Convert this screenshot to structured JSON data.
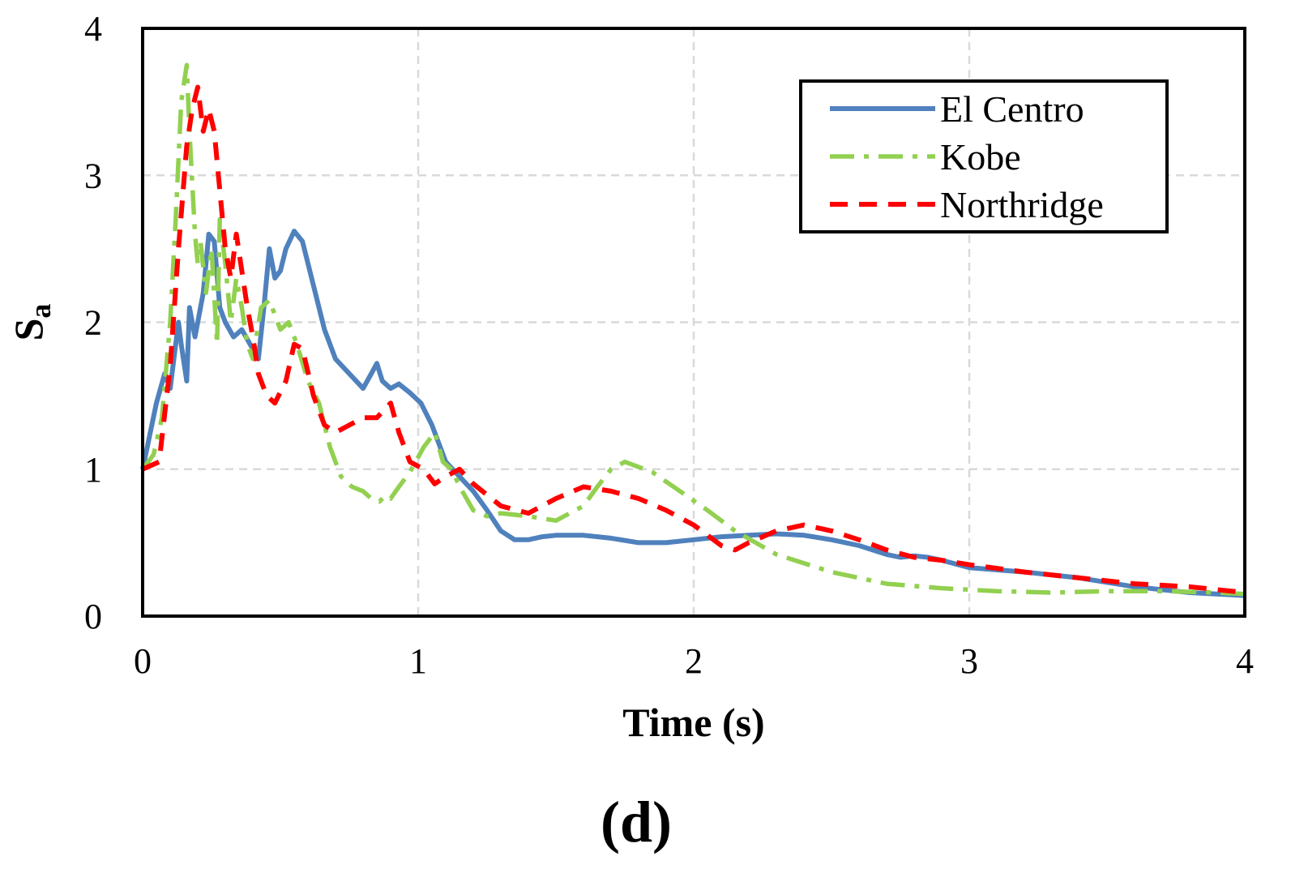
{
  "chart_data": {
    "type": "line",
    "xlabel": "Time (s)",
    "ylabel_main": "S",
    "ylabel_sub": "a",
    "xlim": [
      0,
      4
    ],
    "ylim": [
      0,
      4
    ],
    "xticks": [
      0,
      1,
      2,
      3,
      4
    ],
    "yticks": [
      0,
      1,
      2,
      3,
      4
    ],
    "grid": true,
    "legend_position": "top-right",
    "panel_label": "(d)",
    "series": [
      {
        "name": "El Centro",
        "color": "#4f81bd",
        "style": "solid",
        "x": [
          0,
          0.05,
          0.08,
          0.1,
          0.13,
          0.14,
          0.16,
          0.17,
          0.19,
          0.2,
          0.22,
          0.24,
          0.26,
          0.28,
          0.3,
          0.33,
          0.36,
          0.39,
          0.42,
          0.44,
          0.46,
          0.48,
          0.5,
          0.52,
          0.55,
          0.58,
          0.62,
          0.66,
          0.7,
          0.75,
          0.8,
          0.83,
          0.85,
          0.87,
          0.9,
          0.93,
          0.97,
          1.01,
          1.05,
          1.1,
          1.15,
          1.2,
          1.25,
          1.3,
          1.35,
          1.4,
          1.45,
          1.5,
          1.6,
          1.7,
          1.8,
          1.9,
          2.0,
          2.1,
          2.2,
          2.3,
          2.4,
          2.5,
          2.6,
          2.7,
          2.75,
          2.8,
          2.85,
          2.9,
          3.0,
          3.2,
          3.4,
          3.6,
          3.8,
          4.0
        ],
        "y": [
          1.0,
          1.45,
          1.65,
          1.55,
          2.0,
          1.85,
          1.6,
          2.1,
          1.9,
          2.0,
          2.2,
          2.6,
          2.55,
          2.1,
          2.0,
          1.9,
          1.95,
          1.85,
          1.75,
          2.1,
          2.5,
          2.3,
          2.35,
          2.5,
          2.62,
          2.55,
          2.25,
          1.95,
          1.75,
          1.65,
          1.55,
          1.65,
          1.72,
          1.6,
          1.55,
          1.58,
          1.52,
          1.45,
          1.3,
          1.05,
          0.95,
          0.85,
          0.72,
          0.58,
          0.52,
          0.52,
          0.54,
          0.55,
          0.55,
          0.53,
          0.5,
          0.5,
          0.52,
          0.54,
          0.55,
          0.56,
          0.55,
          0.52,
          0.48,
          0.42,
          0.4,
          0.41,
          0.4,
          0.38,
          0.33,
          0.3,
          0.26,
          0.2,
          0.16,
          0.14
        ]
      },
      {
        "name": "Kobe",
        "color": "#92d050",
        "style": "dashdot",
        "x": [
          0,
          0.04,
          0.07,
          0.1,
          0.12,
          0.14,
          0.16,
          0.17,
          0.19,
          0.2,
          0.21,
          0.23,
          0.25,
          0.27,
          0.28,
          0.3,
          0.32,
          0.34,
          0.36,
          0.38,
          0.4,
          0.43,
          0.46,
          0.5,
          0.53,
          0.56,
          0.6,
          0.64,
          0.68,
          0.72,
          0.76,
          0.8,
          0.83,
          0.86,
          0.88,
          0.9,
          0.93,
          0.97,
          1.02,
          1.06,
          1.09,
          1.12,
          1.16,
          1.2,
          1.25,
          1.3,
          1.4,
          1.5,
          1.6,
          1.65,
          1.7,
          1.75,
          1.85,
          1.95,
          2.05,
          2.15,
          2.3,
          2.5,
          2.7,
          2.9,
          3.1,
          3.3,
          3.5,
          3.7,
          3.9,
          4.0
        ],
        "y": [
          1.0,
          1.1,
          1.35,
          2.0,
          2.7,
          3.5,
          3.75,
          3.3,
          2.6,
          2.4,
          2.55,
          2.2,
          2.5,
          1.85,
          2.7,
          2.4,
          2.0,
          2.3,
          2.1,
          1.85,
          1.75,
          2.1,
          2.15,
          1.95,
          2.0,
          1.85,
          1.6,
          1.45,
          1.15,
          0.95,
          0.88,
          0.85,
          0.8,
          0.78,
          0.82,
          0.8,
          0.88,
          0.98,
          1.15,
          1.25,
          1.05,
          1.0,
          0.85,
          0.72,
          0.68,
          0.7,
          0.68,
          0.65,
          0.75,
          0.88,
          1.0,
          1.05,
          0.98,
          0.85,
          0.72,
          0.58,
          0.42,
          0.3,
          0.22,
          0.19,
          0.17,
          0.16,
          0.17,
          0.17,
          0.16,
          0.15
        ]
      },
      {
        "name": "Northridge",
        "color": "#ff0000",
        "style": "dashed",
        "x": [
          0,
          0.06,
          0.1,
          0.13,
          0.16,
          0.18,
          0.2,
          0.22,
          0.24,
          0.26,
          0.28,
          0.3,
          0.32,
          0.34,
          0.36,
          0.38,
          0.4,
          0.42,
          0.45,
          0.48,
          0.52,
          0.55,
          0.58,
          0.62,
          0.66,
          0.7,
          0.75,
          0.8,
          0.85,
          0.9,
          0.93,
          0.97,
          1.02,
          1.06,
          1.1,
          1.15,
          1.2,
          1.3,
          1.4,
          1.5,
          1.6,
          1.7,
          1.8,
          1.9,
          2.0,
          2.05,
          2.1,
          2.15,
          2.2,
          2.3,
          2.4,
          2.5,
          2.6,
          2.7,
          2.8,
          2.9,
          3.0,
          3.2,
          3.4,
          3.6,
          3.8,
          4.0
        ],
        "y": [
          1.0,
          1.05,
          1.7,
          2.5,
          3.2,
          3.45,
          3.6,
          3.3,
          3.45,
          3.3,
          2.9,
          2.5,
          2.3,
          2.6,
          2.35,
          2.1,
          1.9,
          1.65,
          1.5,
          1.45,
          1.6,
          1.85,
          1.82,
          1.5,
          1.3,
          1.25,
          1.3,
          1.35,
          1.35,
          1.45,
          1.25,
          1.05,
          1.0,
          0.9,
          0.95,
          1.0,
          0.9,
          0.75,
          0.7,
          0.8,
          0.88,
          0.85,
          0.8,
          0.72,
          0.62,
          0.55,
          0.48,
          0.45,
          0.5,
          0.58,
          0.62,
          0.58,
          0.52,
          0.45,
          0.4,
          0.38,
          0.35,
          0.3,
          0.26,
          0.22,
          0.2,
          0.16
        ]
      }
    ]
  }
}
